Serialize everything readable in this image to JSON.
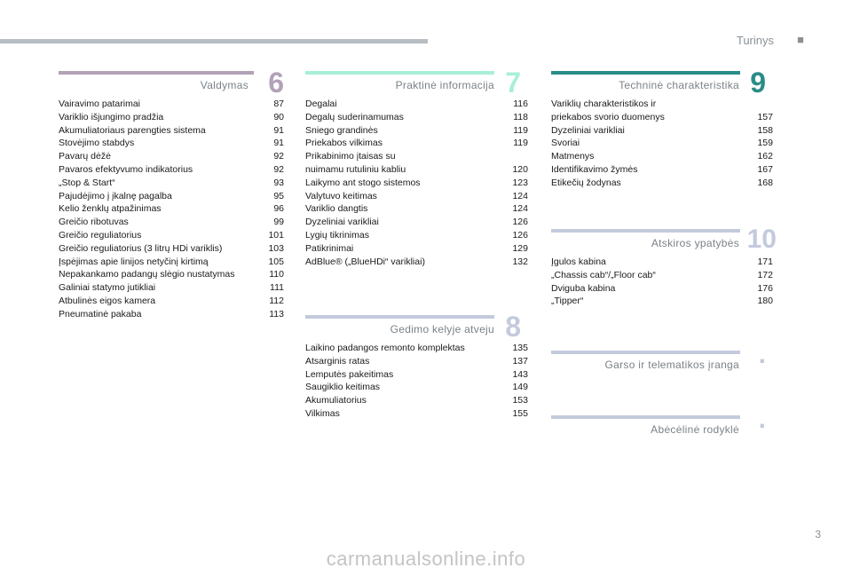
{
  "header": {
    "title": "Turinys",
    "dot": "■"
  },
  "sections": {
    "s6": {
      "title": "Valdymas",
      "number": "6",
      "color": "#b2a1b8",
      "entries": [
        {
          "label": "Vairavimo patarimai",
          "page": "87"
        },
        {
          "label": "Variklio išjungimo pradžia",
          "page": "90"
        },
        {
          "label": "Akumuliatoriaus parengties sistema",
          "page": "91"
        },
        {
          "label": "Stovėjimo stabdys",
          "page": "91"
        },
        {
          "label": "Pavarų dėžė",
          "page": "92"
        },
        {
          "label": "Pavaros efektyvumo indikatorius",
          "page": "92"
        },
        {
          "label": "„Stop & Start“",
          "page": "93"
        },
        {
          "label": "Pajudėjimo į įkalnę pagalba",
          "page": "95"
        },
        {
          "label": "Kelio ženklų atpažinimas",
          "page": "96"
        },
        {
          "label": "Greičio ribotuvas",
          "page": "99"
        },
        {
          "label": "Greičio reguliatorius",
          "page": "101"
        },
        {
          "label": "Greičio reguliatorius (3 litrų HDi variklis)",
          "page": "103"
        },
        {
          "label": "Įspėjimas apie linijos netyčinį kirtimą",
          "page": "105"
        },
        {
          "label": "Nepakankamo padangų slėgio nustatymas",
          "page": "110"
        },
        {
          "label": "Galiniai statymo jutikliai",
          "page": "111"
        },
        {
          "label": "Atbulinės eigos kamera",
          "page": "112"
        },
        {
          "label": "Pneumatinė pakaba",
          "page": "113"
        }
      ]
    },
    "s7": {
      "title": "Praktinė informacija",
      "number": "7",
      "color": "#a8efd6",
      "entries": [
        {
          "label": "Degalai",
          "page": "116"
        },
        {
          "label": "Degalų suderinamumas",
          "page": "118"
        },
        {
          "label": "Sniego grandinės",
          "page": "119"
        },
        {
          "label": "Priekabos vilkimas",
          "page": "119"
        },
        {
          "label": "Prikabinimo įtaisas su\nnuimamu rutuliniu kabliu",
          "page": "120"
        },
        {
          "label": "Laikymo ant stogo sistemos",
          "page": "123"
        },
        {
          "label": "Valytuvo keitimas",
          "page": "124"
        },
        {
          "label": "Variklio dangtis",
          "page": "124"
        },
        {
          "label": "Dyzeliniai varikliai",
          "page": "126"
        },
        {
          "label": "Lygių tikrinimas",
          "page": "126"
        },
        {
          "label": "Patikrinimai",
          "page": "129"
        },
        {
          "label": "AdBlue® („BlueHDi“ varikliai)",
          "page": "132"
        }
      ]
    },
    "s8": {
      "title": "Gedimo kelyje atveju",
      "number": "8",
      "color": "#c3cadc",
      "entries": [
        {
          "label": "Laikino padangos remonto komplektas",
          "page": "135"
        },
        {
          "label": "Atsarginis ratas",
          "page": "137"
        },
        {
          "label": "Lemputės pakeitimas",
          "page": "143"
        },
        {
          "label": "Saugiklio keitimas",
          "page": "149"
        },
        {
          "label": "Akumuliatorius",
          "page": "153"
        },
        {
          "label": "Vilkimas",
          "page": "155"
        }
      ]
    },
    "s9": {
      "title": "Techninė charakteristika",
      "number": "9",
      "color": "#2a8c86",
      "entries": [
        {
          "label": "Variklių charakteristikos ir\npriekabos svorio duomenys",
          "page": "157"
        },
        {
          "label": "Dyzeliniai varikliai",
          "page": "158"
        },
        {
          "label": "Svoriai",
          "page": "159"
        },
        {
          "label": "Matmenys",
          "page": "162"
        },
        {
          "label": "Identifikavimo žymės",
          "page": "167"
        },
        {
          "label": "Etikečių žodynas",
          "page": "168"
        }
      ]
    },
    "s10": {
      "title": "Atskiros ypatybės",
      "number": "10",
      "color": "#c3cadc",
      "entries": [
        {
          "label": "Įgulos kabina",
          "page": "171"
        },
        {
          "label": "„Chassis cab“/„Floor cab“",
          "page": "172"
        },
        {
          "label": "Dviguba kabina",
          "page": "176"
        },
        {
          "label": "„Tipper“",
          "page": "180"
        }
      ]
    },
    "s11": {
      "title": "Garso ir telematikos įranga",
      "number": ".",
      "color": "#c3cadc"
    },
    "s12": {
      "title": "Abėcėlinė rodyklė",
      "number": ".",
      "color": "#c3cadc"
    }
  },
  "page_number": "3",
  "watermark": "carmanualsonline.info"
}
